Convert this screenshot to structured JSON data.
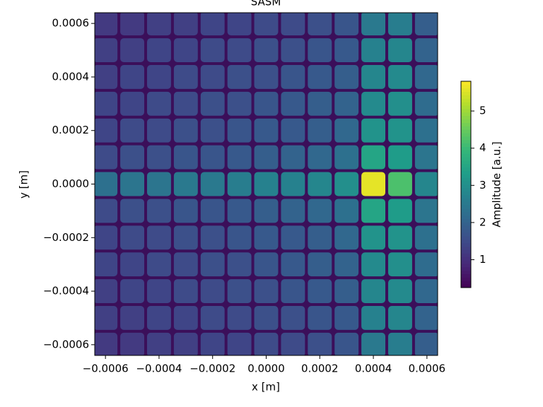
{
  "chart_data": {
    "type": "heatmap",
    "title": "SASM",
    "x_label": "x [m]",
    "y_label": "y [m]",
    "colorbar_label": "Amplitude [a.u.]",
    "colormap": "viridis",
    "x": [
      -0.0006,
      -0.0005,
      -0.0004,
      -0.0003,
      -0.0002,
      -0.0001,
      0,
      0.0001,
      0.0002,
      0.0003,
      0.0004,
      0.0005,
      0.0006
    ],
    "y": [
      0.0006,
      0.0005,
      0.0004,
      0.0003,
      0.0002,
      0.0001,
      0,
      -0.0001,
      -0.0002,
      -0.0003,
      -0.0004,
      -0.0005,
      -0.0006
    ],
    "values": [
      [
        1.2,
        1.2,
        1.3,
        1.3,
        1.4,
        1.4,
        1.5,
        1.5,
        1.6,
        1.7,
        2.5,
        2.6,
        1.9
      ],
      [
        1.3,
        1.3,
        1.4,
        1.4,
        1.5,
        1.5,
        1.6,
        1.6,
        1.7,
        1.8,
        2.7,
        2.8,
        2.0
      ],
      [
        1.3,
        1.4,
        1.4,
        1.5,
        1.5,
        1.6,
        1.6,
        1.7,
        1.8,
        1.9,
        2.8,
        2.9,
        2.1
      ],
      [
        1.4,
        1.4,
        1.5,
        1.5,
        1.6,
        1.6,
        1.7,
        1.8,
        1.9,
        2.0,
        2.9,
        3.0,
        2.2
      ],
      [
        1.4,
        1.5,
        1.5,
        1.6,
        1.6,
        1.7,
        1.8,
        1.8,
        1.9,
        2.1,
        3.1,
        3.1,
        2.3
      ],
      [
        1.5,
        1.6,
        1.6,
        1.7,
        1.7,
        1.8,
        1.9,
        2.0,
        2.1,
        2.3,
        3.5,
        3.3,
        2.4
      ],
      [
        2.3,
        2.4,
        2.4,
        2.5,
        2.5,
        2.6,
        2.7,
        2.7,
        2.8,
        3.0,
        5.6,
        4.2,
        2.8
      ],
      [
        1.5,
        1.6,
        1.6,
        1.7,
        1.7,
        1.8,
        1.9,
        2.0,
        2.1,
        2.3,
        3.5,
        3.3,
        2.4
      ],
      [
        1.4,
        1.5,
        1.5,
        1.6,
        1.6,
        1.7,
        1.8,
        1.8,
        1.9,
        2.1,
        3.1,
        3.1,
        2.3
      ],
      [
        1.4,
        1.4,
        1.5,
        1.5,
        1.6,
        1.6,
        1.7,
        1.8,
        1.9,
        2.0,
        2.9,
        3.0,
        2.2
      ],
      [
        1.3,
        1.4,
        1.4,
        1.5,
        1.5,
        1.6,
        1.6,
        1.7,
        1.8,
        1.9,
        2.8,
        2.9,
        2.1
      ],
      [
        1.3,
        1.3,
        1.4,
        1.4,
        1.5,
        1.5,
        1.6,
        1.6,
        1.7,
        1.8,
        2.7,
        2.8,
        2.0
      ],
      [
        1.2,
        1.2,
        1.3,
        1.3,
        1.4,
        1.4,
        1.5,
        1.5,
        1.6,
        1.7,
        2.5,
        2.6,
        1.9
      ]
    ],
    "xlim": [
      -0.00064,
      0.00064
    ],
    "ylim": [
      -0.00064,
      0.00064
    ],
    "xticks": [
      {
        "value": -0.0006,
        "label": "−0.0006"
      },
      {
        "value": -0.0004,
        "label": "−0.0004"
      },
      {
        "value": -0.0002,
        "label": "−0.0002"
      },
      {
        "value": 0,
        "label": "0.0000"
      },
      {
        "value": 0.0002,
        "label": "0.0002"
      },
      {
        "value": 0.0004,
        "label": "0.0004"
      },
      {
        "value": 0.0006,
        "label": "0.0006"
      }
    ],
    "yticks": [
      {
        "value": -0.0006,
        "label": "−0.0006"
      },
      {
        "value": -0.0004,
        "label": "−0.0004"
      },
      {
        "value": -0.0002,
        "label": "−0.0002"
      },
      {
        "value": 0,
        "label": "0.0000"
      },
      {
        "value": 0.0002,
        "label": "0.0002"
      },
      {
        "value": 0.0004,
        "label": "0.0004"
      },
      {
        "value": 0.0006,
        "label": "0.0006"
      }
    ],
    "clim": [
      0.25,
      5.8
    ],
    "cticks": [
      1,
      2,
      3,
      4,
      5
    ]
  }
}
